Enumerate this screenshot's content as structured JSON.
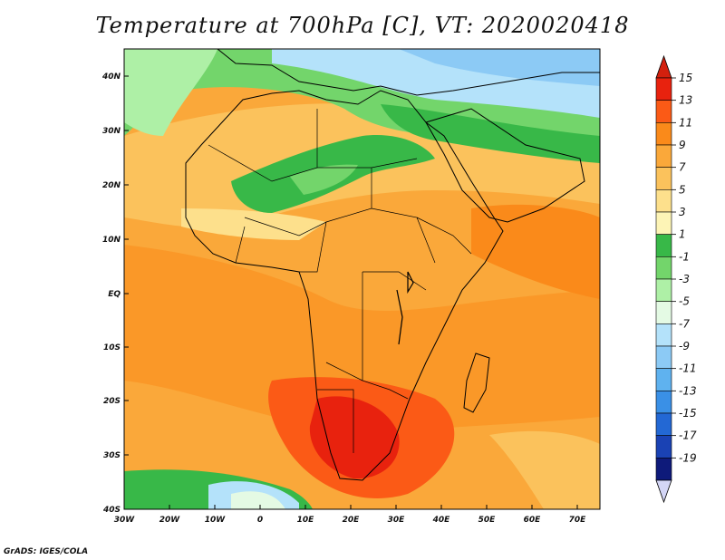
{
  "title": "Temperature at 700hPa [C], VT: 2020020418",
  "footer": "GrADS: IGES/COLA",
  "map": {
    "lat_labels": [
      "40N",
      "30N",
      "20N",
      "10N",
      "EQ",
      "10S",
      "20S",
      "30S",
      "40S"
    ],
    "lon_labels": [
      "30W",
      "20W",
      "10W",
      "0",
      "10E",
      "20E",
      "30E",
      "40E",
      "50E",
      "60E",
      "70E"
    ]
  },
  "colorbar": {
    "labels": [
      "15",
      "13",
      "11",
      "9",
      "7",
      "5",
      "3",
      "1",
      "-1",
      "-3",
      "-5",
      "-7",
      "-9",
      "-11",
      "-13",
      "-15",
      "-17",
      "-19"
    ],
    "colors": [
      "#e8220e",
      "#fb5a16",
      "#fa8a1a",
      "#faa83a",
      "#fbc25c",
      "#fde08c",
      "#fdf4b6",
      "#38b848",
      "#73d56b",
      "#aef0a6",
      "#e4fae4",
      "#b4e2fa",
      "#8ccaf5",
      "#5fb2ef",
      "#3a90e6",
      "#2368d4",
      "#1a42b4",
      "#0e1a7a"
    ],
    "top_arrow_color": "#d3200e",
    "bottom_arrow_color": "#d4d6f6"
  },
  "palette": {
    "ocean_warm": "#faa83a",
    "ocean_hot": "#fa8a1a",
    "sahara": "#fbc25c",
    "sahel_green": "#38b848",
    "mediterranean": "#73d56b",
    "europe_cool": "#b4e2fa",
    "europe_cold": "#8ccaf5",
    "southern_hot": "#fb5a16",
    "kalahari": "#e8220e"
  }
}
